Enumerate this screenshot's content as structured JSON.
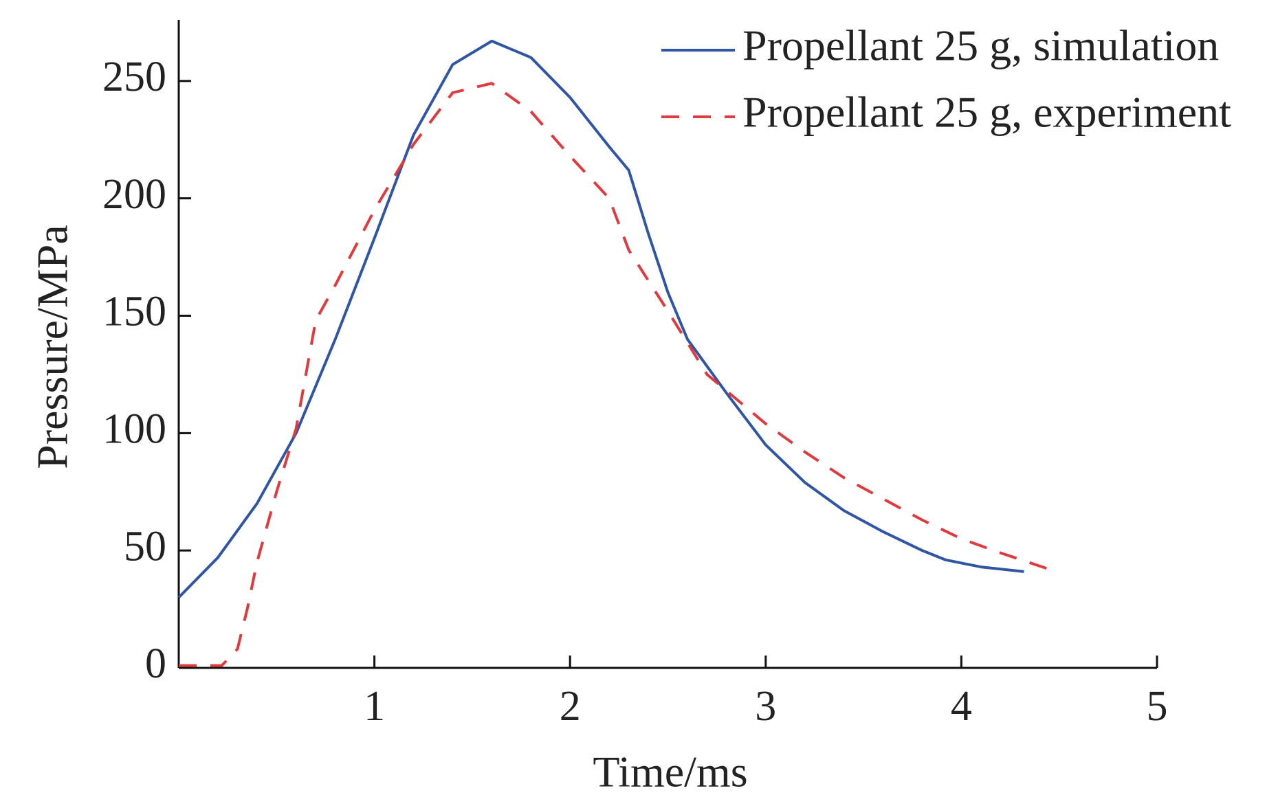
{
  "chart_data": {
    "type": "line",
    "xlabel": "Time/ms",
    "ylabel": "Pressure/MPa",
    "xlim": [
      0,
      5
    ],
    "ylim": [
      0,
      276
    ],
    "xticks": [
      1,
      2,
      3,
      4,
      5
    ],
    "yticks": [
      0,
      50,
      100,
      150,
      200,
      250
    ],
    "legend": "upper right",
    "series": [
      {
        "name": "Propellant 25 g, simulation",
        "color": "#2f55a4",
        "style": "solid",
        "x": [
          0,
          0.2,
          0.4,
          0.6,
          0.8,
          1.0,
          1.2,
          1.4,
          1.6,
          1.8,
          2.0,
          2.2,
          2.3,
          2.4,
          2.5,
          2.6,
          2.8,
          3.0,
          3.2,
          3.4,
          3.6,
          3.8,
          3.92,
          4.1,
          4.32
        ],
        "values": [
          30,
          47,
          70,
          100,
          140,
          183,
          227,
          257,
          267,
          260,
          243,
          222,
          212,
          185,
          160,
          140,
          117,
          95,
          79,
          67,
          58,
          50,
          46,
          43,
          41
        ]
      },
      {
        "name": "Propellant 25 g, experiment",
        "color": "#e03a3e",
        "style": "dashed",
        "x": [
          0,
          0.1,
          0.22,
          0.3,
          0.35,
          0.4,
          0.5,
          0.6,
          0.7,
          0.8,
          1.0,
          1.2,
          1.4,
          1.6,
          1.8,
          2.0,
          2.2,
          2.3,
          2.5,
          2.7,
          2.8,
          3.0,
          3.2,
          3.4,
          3.6,
          3.8,
          4.0,
          4.2,
          4.45
        ],
        "values": [
          1,
          1,
          1,
          8,
          25,
          45,
          75,
          102,
          148,
          163,
          195,
          223,
          245,
          249,
          237,
          218,
          200,
          178,
          152,
          125,
          118,
          104,
          92,
          81,
          72,
          63,
          55,
          49,
          42
        ]
      }
    ]
  }
}
